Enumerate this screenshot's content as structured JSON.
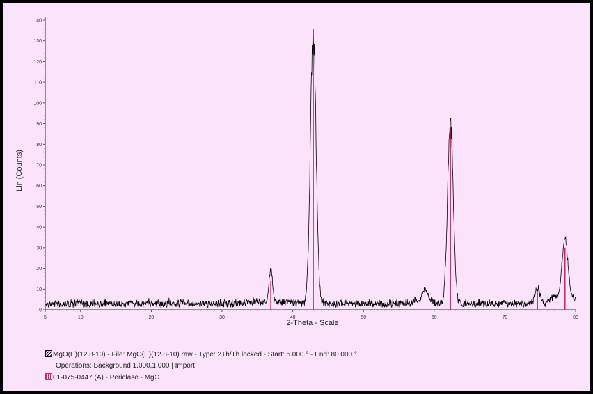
{
  "chart_data": {
    "type": "line",
    "ylabel": "Lin (Counts)",
    "xlabel": "2-Theta - Scale",
    "xlim": [
      5,
      80
    ],
    "ylim": [
      0,
      140
    ],
    "xticks": [
      5,
      10,
      20,
      30,
      40,
      50,
      60,
      70,
      80
    ],
    "yticks": [
      0,
      10,
      20,
      30,
      40,
      50,
      60,
      70,
      80,
      90,
      100,
      110,
      120,
      130,
      140
    ],
    "series": [
      {
        "name": "MgO(E)(12.8-10)",
        "color": "#000000",
        "baseline": 2.5,
        "noise": 1.5,
        "peaks": [
          {
            "x": 36.9,
            "y": 19,
            "width": 0.25
          },
          {
            "x": 42.9,
            "y": 140,
            "width": 0.4
          },
          {
            "x": 58.7,
            "y": 9,
            "width": 0.3
          },
          {
            "x": 62.3,
            "y": 94,
            "width": 0.4
          },
          {
            "x": 74.6,
            "y": 11,
            "width": 0.35
          },
          {
            "x": 78.5,
            "y": 34,
            "width": 0.4
          }
        ]
      }
    ],
    "reference_lines": {
      "name": "01-075-0447 (A) - Periclase - MgO",
      "color": "#c0306a",
      "x": [
        36.9,
        42.9,
        62.3,
        74.6,
        78.5
      ],
      "y": [
        14,
        136,
        88,
        9,
        30
      ]
    }
  },
  "legend": {
    "raw_text": "MgO(E)(12.8-10) - File: MgO(E)(12.8-10).raw - Type: 2Th/Th locked - Start: 5.000 ° - End: 80.000 °",
    "operations_text": "Operations: Background 1.000,1.000 | Import",
    "ref_text": "01-075-0447 (A) - Periclase - MgO"
  }
}
